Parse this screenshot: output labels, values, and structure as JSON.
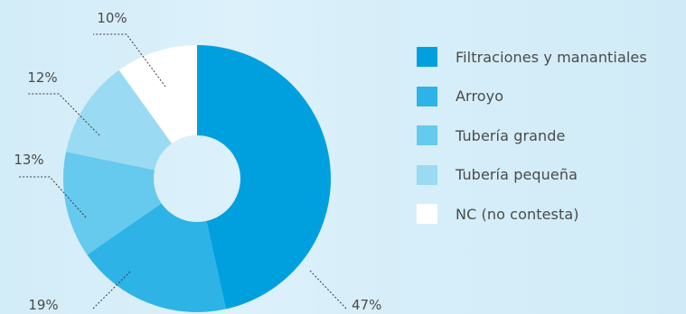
{
  "chart_data": {
    "type": "pie",
    "donut": true,
    "categories": [
      "Filtraciones y manantiales",
      "Arroyo",
      "Tubería grande",
      "Tubería pequeña",
      "NC (no contesta)"
    ],
    "values": [
      47,
      19,
      13,
      12,
      10
    ],
    "value_labels": [
      "47%",
      "19%",
      "13%",
      "12%",
      "10%"
    ],
    "colors": [
      "#00a0df",
      "#2db3e6",
      "#66c9ee",
      "#9bdaf3",
      "#ffffff"
    ],
    "legend_position": "right",
    "start": "top",
    "direction": "clockwise"
  }
}
